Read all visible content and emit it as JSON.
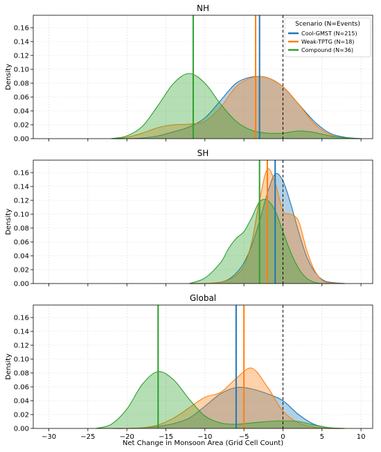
{
  "figure": {
    "xlabel": "Net Change in Monsoon Area (Grid Cell Count)"
  },
  "legend": {
    "title": "Scenario (N=Events)",
    "entries": [
      {
        "label": "Cool-GMST (N=215)",
        "color": "#1f77b4"
      },
      {
        "label": "Weak-TPTG (N=18)",
        "color": "#ff7f0e"
      },
      {
        "label": "Compound (N=36)",
        "color": "#2ca02c"
      }
    ]
  },
  "chart_data": [
    {
      "type": "area",
      "title": "NH",
      "xlabel": "",
      "ylabel": "Density",
      "xlim": [
        -32,
        11.5
      ],
      "ylim": [
        0,
        0.178
      ],
      "xticks": [
        -30,
        -25,
        -20,
        -15,
        -10,
        -5,
        0,
        5,
        10
      ],
      "yticks": [
        0.0,
        0.02,
        0.04,
        0.06,
        0.08,
        0.1,
        0.12,
        0.14,
        0.16
      ],
      "x": [
        -22,
        -20,
        -18,
        -16,
        -14,
        -12,
        -10,
        -8,
        -6,
        -4,
        -2,
        0,
        2,
        4,
        6,
        8,
        10
      ],
      "series": [
        {
          "name": "Cool-GMST (N=215)",
          "color": "#1f77b4",
          "mean": -3.0,
          "values": [
            0.0,
            0.0,
            0.001,
            0.004,
            0.01,
            0.017,
            0.03,
            0.055,
            0.08,
            0.089,
            0.088,
            0.075,
            0.05,
            0.025,
            0.008,
            0.002,
            0.0
          ]
        },
        {
          "name": "Weak-TPTG (N=18)",
          "color": "#ff7f0e",
          "mean": -3.5,
          "values": [
            0.0,
            0.002,
            0.008,
            0.016,
            0.02,
            0.021,
            0.025,
            0.045,
            0.075,
            0.088,
            0.088,
            0.075,
            0.05,
            0.022,
            0.006,
            0.001,
            0.0
          ]
        },
        {
          "name": "Compound (N=36)",
          "color": "#2ca02c",
          "mean": -11.5,
          "values": [
            0.0,
            0.004,
            0.018,
            0.048,
            0.08,
            0.094,
            0.08,
            0.05,
            0.025,
            0.012,
            0.008,
            0.008,
            0.011,
            0.009,
            0.004,
            0.001,
            0.0
          ]
        }
      ],
      "zero_line": 0,
      "grid": true
    },
    {
      "type": "area",
      "title": "SH",
      "xlabel": "",
      "ylabel": "Density",
      "xlim": [
        -32,
        11.5
      ],
      "ylim": [
        0,
        0.178
      ],
      "xticks": [
        -30,
        -25,
        -20,
        -15,
        -10,
        -5,
        0,
        5,
        10
      ],
      "yticks": [
        0.0,
        0.02,
        0.04,
        0.06,
        0.08,
        0.1,
        0.12,
        0.14,
        0.16
      ],
      "x": [
        -12,
        -10,
        -8,
        -7,
        -6,
        -5,
        -4,
        -3,
        -2,
        -1,
        0,
        1,
        2,
        3,
        4,
        5,
        6,
        8
      ],
      "series": [
        {
          "name": "Cool-GMST (N=215)",
          "color": "#1f77b4",
          "mean": -1.0,
          "values": [
            0.0,
            0.0,
            0.002,
            0.006,
            0.015,
            0.03,
            0.055,
            0.09,
            0.13,
            0.158,
            0.148,
            0.115,
            0.075,
            0.04,
            0.018,
            0.006,
            0.002,
            0.0
          ]
        },
        {
          "name": "Weak-TPTG (N=18)",
          "color": "#ff7f0e",
          "mean": -2.0,
          "values": [
            0.0,
            0.0,
            0.002,
            0.005,
            0.012,
            0.025,
            0.06,
            0.12,
            0.165,
            0.145,
            0.105,
            0.1,
            0.09,
            0.05,
            0.02,
            0.005,
            0.001,
            0.0
          ]
        },
        {
          "name": "Compound (N=36)",
          "color": "#2ca02c",
          "mean": -3.0,
          "values": [
            0.0,
            0.008,
            0.03,
            0.05,
            0.065,
            0.075,
            0.095,
            0.118,
            0.12,
            0.105,
            0.075,
            0.045,
            0.022,
            0.008,
            0.002,
            0.0,
            0.0,
            0.0
          ]
        }
      ],
      "zero_line": 0,
      "grid": true
    },
    {
      "type": "area",
      "title": "Global",
      "xlabel": "Net Change in Monsoon Area (Grid Cell Count)",
      "ylabel": "Density",
      "xlim": [
        -32,
        11.5
      ],
      "ylim": [
        0,
        0.178
      ],
      "xticks": [
        -30,
        -25,
        -20,
        -15,
        -10,
        -5,
        0,
        5,
        10
      ],
      "yticks": [
        0.0,
        0.02,
        0.04,
        0.06,
        0.08,
        0.1,
        0.12,
        0.14,
        0.16
      ],
      "x": [
        -24,
        -22,
        -20,
        -18,
        -16,
        -14,
        -12,
        -10,
        -8,
        -6,
        -4,
        -2,
        0,
        2,
        4,
        6,
        8
      ],
      "series": [
        {
          "name": "Cool-GMST (N=215)",
          "color": "#1f77b4",
          "mean": -6.0,
          "values": [
            0.0,
            0.0,
            0.0,
            0.001,
            0.003,
            0.007,
            0.015,
            0.032,
            0.05,
            0.059,
            0.057,
            0.05,
            0.04,
            0.02,
            0.006,
            0.001,
            0.0
          ]
        },
        {
          "name": "Weak-TPTG (N=18)",
          "color": "#ff7f0e",
          "mean": -5.0,
          "values": [
            0.0,
            0.0,
            0.0,
            0.001,
            0.005,
            0.015,
            0.03,
            0.045,
            0.052,
            0.072,
            0.087,
            0.06,
            0.025,
            0.008,
            0.002,
            0.0,
            0.0
          ]
        },
        {
          "name": "Compound (N=36)",
          "color": "#2ca02c",
          "mean": -16.0,
          "values": [
            0.0,
            0.006,
            0.028,
            0.064,
            0.082,
            0.07,
            0.042,
            0.018,
            0.008,
            0.006,
            0.008,
            0.01,
            0.011,
            0.01,
            0.005,
            0.001,
            0.0
          ]
        }
      ],
      "zero_line": 0,
      "grid": true
    }
  ]
}
